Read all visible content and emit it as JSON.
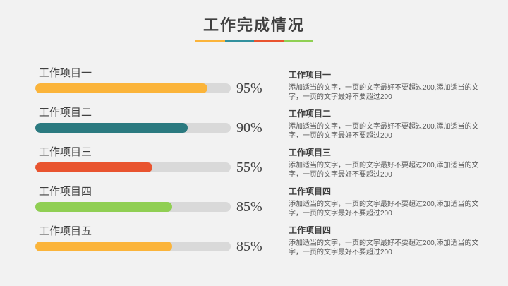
{
  "slide": {
    "title": "工作完成情况",
    "background": "#F2F2F2",
    "underline_colors": [
      "#FBB43A",
      "#33919E",
      "#E9542F",
      "#8FD053"
    ]
  },
  "chart_data": {
    "type": "bar",
    "orientation": "horizontal",
    "title": "工作完成情况",
    "categories": [
      "工作项目一",
      "工作项目二",
      "工作项目三",
      "工作项目四",
      "工作项目五"
    ],
    "values": [
      95,
      90,
      55,
      85,
      85
    ],
    "value_labels": [
      "95%",
      "90%",
      "55%",
      "85%",
      "85%"
    ],
    "unit": "%",
    "xlim": [
      0,
      100
    ],
    "track_color": "#D9D9D9",
    "bar_colors": [
      "#FBB43A",
      "#2B7A80",
      "#E9542F",
      "#90CF53",
      "#FBB43A"
    ],
    "items": [
      {
        "label": "工作项目一",
        "value": 95,
        "value_label": "95%",
        "fill_pct": 88,
        "color": "#FBB43A"
      },
      {
        "label": "工作项目二",
        "value": 90,
        "value_label": "90%",
        "fill_pct": 78,
        "color": "#2B7A80"
      },
      {
        "label": "工作项目三",
        "value": 55,
        "value_label": "55%",
        "fill_pct": 60,
        "color": "#E9542F"
      },
      {
        "label": "工作项目四",
        "value": 85,
        "value_label": "85%",
        "fill_pct": 70,
        "color": "#90CF53"
      },
      {
        "label": "工作项目五",
        "value": 85,
        "value_label": "85%",
        "fill_pct": 70,
        "color": "#FBB43A"
      }
    ]
  },
  "descriptions": [
    {
      "title": "工作项目一",
      "body": "添加适当的文字，一页的文字最好不要超过200,添加适当的文字，一页的文字最好不要超过200"
    },
    {
      "title": "工作项目二",
      "body": "添加适当的文字，一页的文字最好不要超过200,添加适当的文字，一页的文字最好不要超过200"
    },
    {
      "title": "工作项目三",
      "body": "添加适当的文字，一页的文字最好不要超过200,添加适当的文字，一页的文字最好不要超过200"
    },
    {
      "title": "工作项目四",
      "body": "添加适当的文字，一页的文字最好不要超过200,添加适当的文字，一页的文字最好不要超过200"
    },
    {
      "title": "工作项目四",
      "body": "添加适当的文字，一页的文字最好不要超过200,添加适当的文字，一页的文字最好不要超过200"
    }
  ]
}
